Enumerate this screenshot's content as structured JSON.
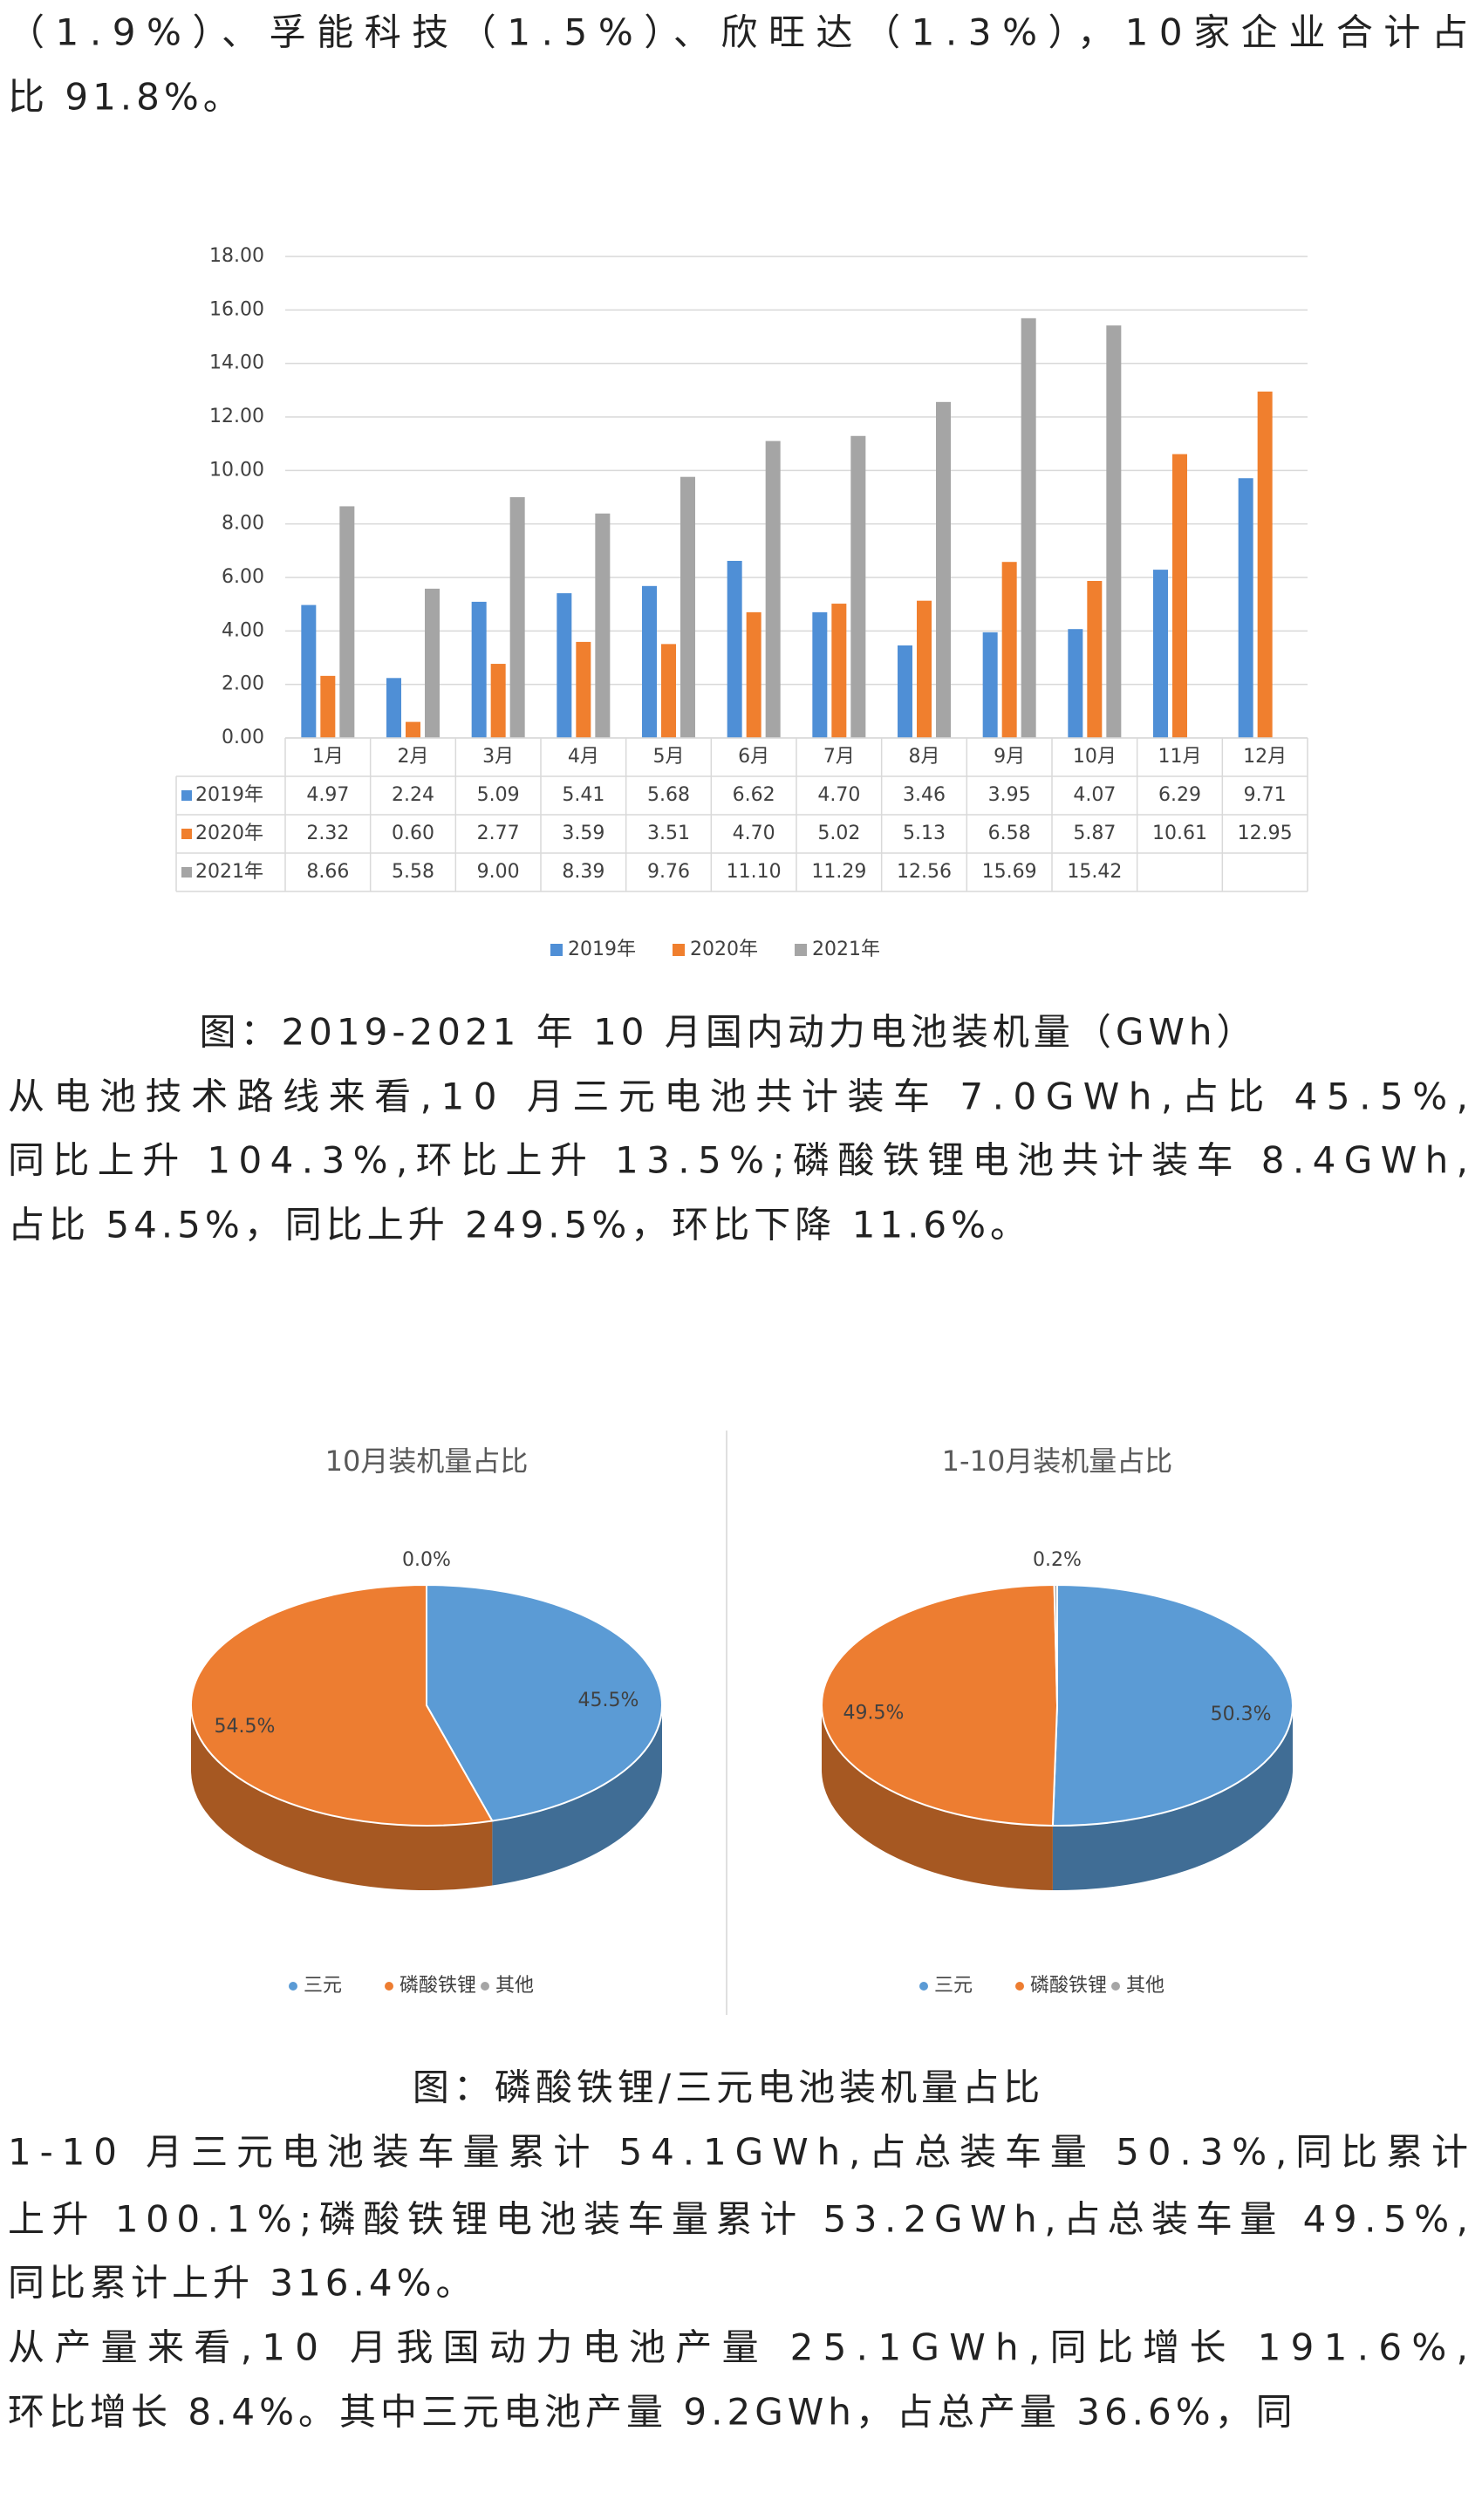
{
  "blocks": [
    {
      "lines": [
        "（1.9%）、孚能科技（1.5%）、欣旺达（1.3%），10家企业合计占",
        "比 91.8%。"
      ]
    },
    {
      "lines": [
        "从电池技术路线来看,10 月三元电池共计装车 7.0GWh,占比 45.5%,",
        "同比上升 104.3%,环比上升 13.5%;磷酸铁锂电池共计装车 8.4GWh,",
        "占比 54.5%，同比上升 249.5%，环比下降 11.6%。"
      ]
    },
    {
      "lines": [
        "1-10 月三元电池装车量累计 54.1GWh,占总装车量 50.3%,同比累计",
        "上升 100.1%;磷酸铁锂电池装车量累计 53.2GWh,占总装车量 49.5%,",
        "同比累计上升 316.4%。"
      ]
    },
    {
      "lines": [
        "从产量来看,10 月我国动力电池产量 25.1GWh,同比增长 191.6%,",
        "环比增长 8.4%。其中三元电池产量 9.2GWh，占总产量 36.6%，同"
      ]
    }
  ],
  "captions": [
    "图：2019-2021 年 10 月国内动力电池装机量（GWh）",
    "图：磷酸铁锂/三元电池装机量占比"
  ],
  "chart_data": [
    {
      "type": "bar",
      "categories": [
        "1月",
        "2月",
        "3月",
        "4月",
        "5月",
        "6月",
        "7月",
        "8月",
        "9月",
        "10月",
        "11月",
        "12月"
      ],
      "series": [
        {
          "name": "2019年",
          "color": "#4f8fd6",
          "values": [
            4.97,
            2.24,
            5.09,
            5.41,
            5.68,
            6.62,
            4.7,
            3.46,
            3.95,
            4.07,
            6.29,
            9.71
          ],
          "value_labels": [
            "4.97",
            "2.24",
            "5.09",
            "5.41",
            "5.68",
            "6.62",
            "4.70",
            "3.46",
            "3.95",
            "4.07",
            "6.29",
            "9.71"
          ]
        },
        {
          "name": "2020年",
          "color": "#f07f2e",
          "values": [
            2.32,
            0.6,
            2.77,
            3.59,
            3.51,
            4.7,
            5.02,
            5.13,
            6.58,
            5.87,
            10.61,
            12.95
          ],
          "value_labels": [
            "2.32",
            "0.60",
            "2.77",
            "3.59",
            "3.51",
            "4.70",
            "5.02",
            "5.13",
            "6.58",
            "5.87",
            "10.61",
            "12.95"
          ]
        },
        {
          "name": "2021年",
          "color": "#a5a5a5",
          "values": [
            8.66,
            5.58,
            9.0,
            8.39,
            9.76,
            11.1,
            11.29,
            12.56,
            15.69,
            15.42,
            null,
            null
          ],
          "value_labels": [
            "8.66",
            "5.58",
            "9.00",
            "8.39",
            "9.76",
            "11.10",
            "11.29",
            "12.56",
            "15.69",
            "15.42",
            null,
            null
          ]
        }
      ],
      "ylim": [
        0,
        18
      ],
      "yticks": [
        {
          "value": 0,
          "label": "0.00"
        },
        {
          "value": 2,
          "label": "2.00"
        },
        {
          "value": 4,
          "label": "4.00"
        },
        {
          "value": 6,
          "label": "6.00"
        },
        {
          "value": 8,
          "label": "8.00"
        },
        {
          "value": 10,
          "label": "10.00"
        },
        {
          "value": 12,
          "label": "12.00"
        },
        {
          "value": 14,
          "label": "14.00"
        },
        {
          "value": 16,
          "label": "16.00"
        },
        {
          "value": 18,
          "label": "18.00"
        }
      ],
      "grid": true,
      "legend": "bottom"
    },
    {
      "type": "pie",
      "title": "10月装机量占比",
      "categories": [
        "三元",
        "磷酸铁锂",
        "其他"
      ],
      "colors": [
        "#5b9bd5",
        "#ed7d31",
        "#a5a5a5"
      ],
      "values": [
        45.5,
        54.5,
        0.0
      ],
      "value_labels": [
        "45.5%",
        "54.5%",
        "0.0%"
      ],
      "legend": "bottom"
    },
    {
      "type": "pie",
      "title": "1-10月装机量占比",
      "categories": [
        "三元",
        "磷酸铁锂",
        "其他"
      ],
      "colors": [
        "#5b9bd5",
        "#ed7d31",
        "#a5a5a5"
      ],
      "values": [
        50.3,
        49.5,
        0.2
      ],
      "value_labels": [
        "50.3%",
        "49.5%",
        "0.2%"
      ],
      "legend": "bottom"
    }
  ]
}
